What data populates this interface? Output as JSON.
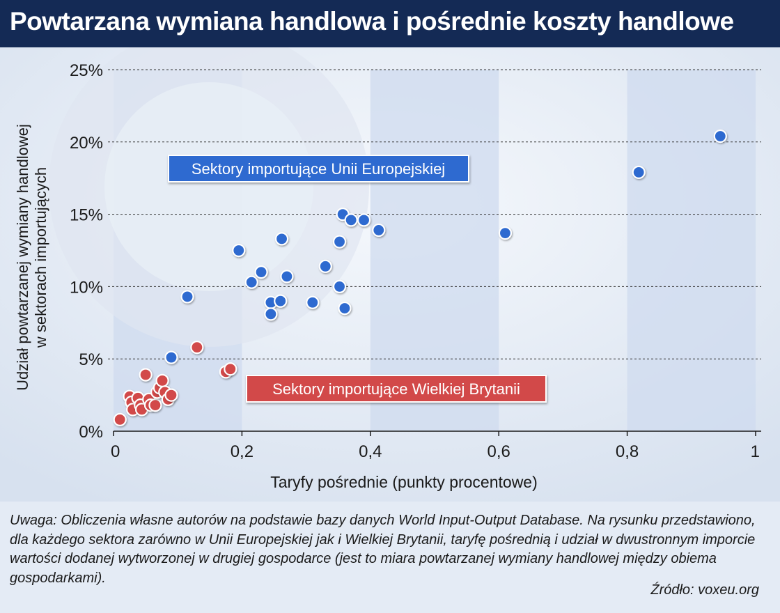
{
  "title": "Powtarzana wymiana handlowa i pośrednie koszty handlowe",
  "note": "Uwaga: Obliczenia własne autorów na podstawie bazy danych World Input-Output Database. Na rysunku przedstawiono, dla każdego sektora zarówno w Unii Europejskiej jak i Wielkiej Brytanii, taryfę pośrednią i udział w dwustronnym imporcie wartości dodanej wytworzonej w drugiej gospodarce (jest to miara powtarzanej wymiany handlowej między obiema gospodarkami).",
  "source": "Źródło: voxeu.org",
  "colors": {
    "header_bg": "#142a55",
    "eu": "#2f6bd0",
    "uk": "#d24a4a",
    "band": "#cfdbef"
  },
  "chart_data": {
    "type": "scatter",
    "xlabel": "Taryfy pośrednie (punkty procentowe)",
    "ylabel": "Udział powtarzanej wymiany handlowej w sektorach importujących",
    "ylabel_lines": [
      "Udział powtarzanej wymiany handlowej",
      "w sektorach importujących"
    ],
    "xlim": [
      0,
      1
    ],
    "ylim": [
      0,
      25
    ],
    "xticks": [
      0,
      0.2,
      0.4,
      0.6,
      0.8,
      1
    ],
    "xtick_labels": [
      "0",
      "0,2",
      "0,4",
      "0,6",
      "0,8",
      "1"
    ],
    "yticks": [
      0,
      5,
      10,
      15,
      20,
      25
    ],
    "ytick_labels": [
      "0%",
      "5%",
      "10%",
      "15%",
      "20%",
      "25%"
    ],
    "grid": "horizontal dashed",
    "series": [
      {
        "name": "Sektory importujące Unii Europejskiej",
        "color": "#2f6bd0",
        "points": [
          [
            0.09,
            5.1
          ],
          [
            0.115,
            9.3
          ],
          [
            0.195,
            12.5
          ],
          [
            0.215,
            10.3
          ],
          [
            0.23,
            11.0
          ],
          [
            0.245,
            8.9
          ],
          [
            0.245,
            8.1
          ],
          [
            0.26,
            9.0
          ],
          [
            0.262,
            13.3
          ],
          [
            0.27,
            10.7
          ],
          [
            0.31,
            8.9
          ],
          [
            0.33,
            11.4
          ],
          [
            0.352,
            10.0
          ],
          [
            0.352,
            13.1
          ],
          [
            0.357,
            15.0
          ],
          [
            0.36,
            8.5
          ],
          [
            0.37,
            14.6
          ],
          [
            0.39,
            14.6
          ],
          [
            0.413,
            13.9
          ],
          [
            0.61,
            13.7
          ],
          [
            0.818,
            17.9
          ],
          [
            0.945,
            20.4
          ]
        ]
      },
      {
        "name": "Sektory importujące Wielkiej Brytanii",
        "color": "#d24a4a",
        "points": [
          [
            0.01,
            0.8
          ],
          [
            0.025,
            2.4
          ],
          [
            0.028,
            2.0
          ],
          [
            0.03,
            1.5
          ],
          [
            0.038,
            2.3
          ],
          [
            0.042,
            1.8
          ],
          [
            0.044,
            1.5
          ],
          [
            0.05,
            3.9
          ],
          [
            0.055,
            2.2
          ],
          [
            0.058,
            1.8
          ],
          [
            0.065,
            1.8
          ],
          [
            0.068,
            2.7
          ],
          [
            0.072,
            3.0
          ],
          [
            0.076,
            3.5
          ],
          [
            0.08,
            2.7
          ],
          [
            0.085,
            2.2
          ],
          [
            0.09,
            2.5
          ],
          [
            0.13,
            5.8
          ],
          [
            0.175,
            4.1
          ],
          [
            0.182,
            4.3
          ]
        ]
      }
    ]
  }
}
